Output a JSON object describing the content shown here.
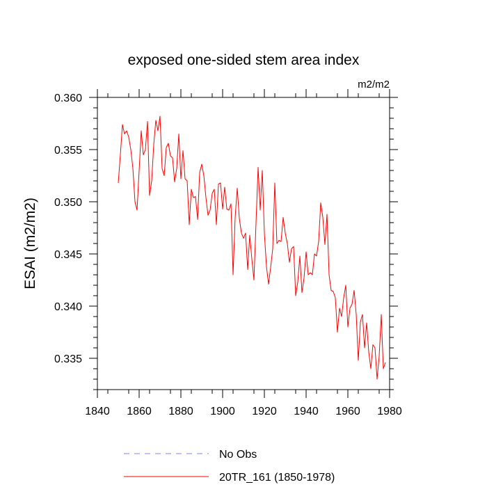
{
  "chart_data": {
    "type": "line",
    "title": "exposed one-sided stem area index",
    "units": "m2/m2",
    "ylabel": "ESAI  (m2/m2)",
    "xlabel": "",
    "xlim": [
      1840,
      1980
    ],
    "ylim": [
      0.332,
      0.36
    ],
    "x_ticks": [
      1840,
      1860,
      1880,
      1900,
      1920,
      1940,
      1960,
      1980
    ],
    "x_tick_labels": [
      "1840",
      "1860",
      "1880",
      "1900",
      "1920",
      "1940",
      "1960",
      "1980"
    ],
    "y_ticks": [
      0.335,
      0.34,
      0.345,
      0.35,
      0.355,
      0.36
    ],
    "y_tick_labels": [
      "0.335",
      "0.340",
      "0.345",
      "0.350",
      "0.355",
      "0.360"
    ],
    "grid": false,
    "legend": [
      {
        "label": "No Obs",
        "color": "#8080ff",
        "style": "dashed"
      },
      {
        "label": "20TR_161 (1850-1978)",
        "color": "#ff0000",
        "style": "solid"
      }
    ],
    "series": [
      {
        "name": "20TR_161 (1850-1978)",
        "color": "#ff0000",
        "x": [
          1850,
          1851,
          1852,
          1853,
          1854,
          1855,
          1856,
          1857,
          1858,
          1859,
          1860,
          1861,
          1862,
          1863,
          1864,
          1865,
          1866,
          1867,
          1868,
          1869,
          1870,
          1871,
          1872,
          1873,
          1874,
          1875,
          1876,
          1877,
          1878,
          1879,
          1880,
          1881,
          1882,
          1883,
          1884,
          1885,
          1886,
          1887,
          1888,
          1889,
          1890,
          1891,
          1892,
          1893,
          1894,
          1895,
          1896,
          1897,
          1898,
          1899,
          1900,
          1901,
          1902,
          1903,
          1904,
          1905,
          1906,
          1907,
          1908,
          1909,
          1910,
          1911,
          1912,
          1913,
          1914,
          1915,
          1916,
          1917,
          1918,
          1919,
          1920,
          1921,
          1922,
          1923,
          1924,
          1925,
          1926,
          1927,
          1928,
          1929,
          1930,
          1931,
          1932,
          1933,
          1934,
          1935,
          1936,
          1937,
          1938,
          1939,
          1940,
          1941,
          1942,
          1943,
          1944,
          1945,
          1946,
          1947,
          1948,
          1949,
          1950,
          1951,
          1952,
          1953,
          1954,
          1955,
          1956,
          1957,
          1958,
          1959,
          1960,
          1961,
          1962,
          1963,
          1964,
          1965,
          1966,
          1967,
          1968,
          1969,
          1970,
          1971,
          1972,
          1973,
          1974,
          1975,
          1976,
          1977,
          1978
        ],
        "values": [
          0.3518,
          0.3545,
          0.3574,
          0.3565,
          0.3568,
          0.3562,
          0.355,
          0.3532,
          0.35,
          0.3492,
          0.353,
          0.3568,
          0.3545,
          0.355,
          0.3577,
          0.3506,
          0.352,
          0.3555,
          0.3578,
          0.3568,
          0.3582,
          0.3532,
          0.3525,
          0.3552,
          0.3556,
          0.3544,
          0.3542,
          0.3519,
          0.3532,
          0.3565,
          0.3522,
          0.3549,
          0.3522,
          0.352,
          0.3478,
          0.3512,
          0.3504,
          0.3505,
          0.3483,
          0.3528,
          0.3536,
          0.3525,
          0.3504,
          0.3487,
          0.3492,
          0.3508,
          0.3512,
          0.3478,
          0.3517,
          0.3518,
          0.3493,
          0.3514,
          0.3493,
          0.3492,
          0.3498,
          0.343,
          0.3485,
          0.3513,
          0.3484,
          0.347,
          0.3465,
          0.347,
          0.3435,
          0.3468,
          0.3445,
          0.3425,
          0.348,
          0.3533,
          0.3492,
          0.353,
          0.347,
          0.3438,
          0.3421,
          0.3437,
          0.3455,
          0.3518,
          0.346,
          0.3463,
          0.3462,
          0.3485,
          0.347,
          0.346,
          0.3442,
          0.3455,
          0.3457,
          0.341,
          0.3423,
          0.3448,
          0.3413,
          0.3427,
          0.3452,
          0.343,
          0.3432,
          0.343,
          0.345,
          0.3448,
          0.3462,
          0.3499,
          0.3485,
          0.3459,
          0.3488,
          0.343,
          0.3415,
          0.3414,
          0.3408,
          0.3375,
          0.3398,
          0.339,
          0.3408,
          0.342,
          0.338,
          0.3398,
          0.3402,
          0.3415,
          0.3392,
          0.3348,
          0.3385,
          0.3392,
          0.336,
          0.3384,
          0.3356,
          0.334,
          0.3363,
          0.336,
          0.333,
          0.3352,
          0.3392,
          0.334,
          0.3346
        ]
      }
    ]
  }
}
